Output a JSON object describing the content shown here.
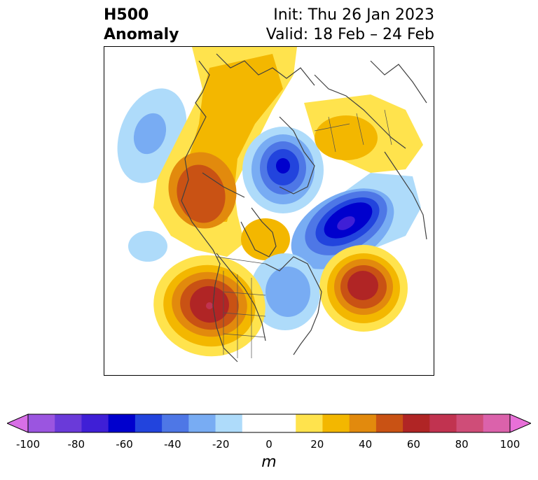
{
  "header": {
    "title_line1": "H500",
    "title_line2": "Anomaly",
    "init": "Init: Thu 26 Jan 2023",
    "valid": "Valid: 18 Feb – 24 Feb"
  },
  "colorbar": {
    "unit": "m",
    "tick_labels": [
      "-100",
      "-80",
      "-60",
      "-40",
      "-20",
      "0",
      "20",
      "40",
      "60",
      "80",
      "100"
    ],
    "colors": [
      "#d86fe6",
      "#9b55e0",
      "#6a3ad9",
      "#3f1fd6",
      "#0000cd",
      "#2244dd",
      "#4e77e6",
      "#78acf3",
      "#aedbfa",
      "#ffffff",
      "#ffffff",
      "#ffe34d",
      "#f3b700",
      "#e28a0d",
      "#c95214",
      "#b02525",
      "#c13350",
      "#cf4d78",
      "#db62ab",
      "#e870d8"
    ]
  },
  "map": {
    "anomaly_centers": [
      {
        "name": "west-coast-ridge",
        "sign": "positive",
        "max_m": 60
      },
      {
        "name": "alaska-ridge",
        "sign": "positive",
        "max_m": 50
      },
      {
        "name": "north-atlantic-ridge",
        "sign": "positive",
        "max_m": 60
      },
      {
        "name": "scandinavia-ridge",
        "sign": "positive",
        "max_m": 30
      },
      {
        "name": "arctic-ridge",
        "sign": "positive",
        "max_m": 20
      },
      {
        "name": "greenland-trough",
        "sign": "negative",
        "max_m": -70
      },
      {
        "name": "arctic-trough",
        "sign": "negative",
        "max_m": -60
      },
      {
        "name": "eastern-us-trough",
        "sign": "negative",
        "max_m": -30
      },
      {
        "name": "pacific-trough",
        "sign": "negative",
        "max_m": -30
      }
    ]
  }
}
